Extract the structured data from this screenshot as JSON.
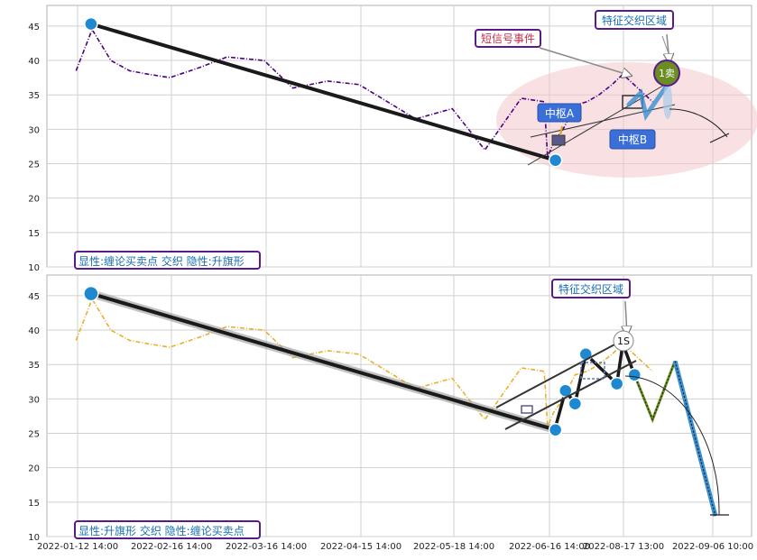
{
  "chart_data": [
    {
      "type": "line",
      "panel": "top",
      "ylim": [
        10,
        48
      ],
      "yticks": [
        10,
        15,
        20,
        25,
        30,
        35,
        40,
        45
      ],
      "grid": true,
      "series": [
        {
          "role": "price",
          "color": "#4b0082",
          "style": "dash-dot",
          "x": [
            "2022-01-12",
            "2022-01-18",
            "2022-01-25",
            "2022-02-01",
            "2022-02-08",
            "2022-02-16",
            "2022-02-25",
            "2022-03-05",
            "2022-03-16",
            "2022-03-25",
            "2022-04-05",
            "2022-04-15",
            "2022-04-25",
            "2022-05-05",
            "2022-05-18",
            "2022-05-28",
            "2022-06-08",
            "2022-06-15",
            "2022-06-16",
            "2022-06-20",
            "2022-06-28",
            "2022-07-08",
            "2022-07-18",
            "2022-07-28",
            "2022-08-08",
            "2022-08-17",
            "2022-08-24"
          ],
          "y": [
            38.5,
            44.5,
            40.0,
            38.5,
            38.0,
            37.5,
            39.0,
            40.5,
            40.0,
            36.0,
            37.0,
            36.5,
            34.0,
            31.5,
            33.0,
            27.0,
            34.5,
            34.0,
            26.0,
            28.0,
            30.0,
            33.5,
            34.0,
            35.0,
            36.5,
            38.0,
            34.0
          ]
        },
        {
          "role": "bi-stroke",
          "color": "#1a1a1a",
          "x": [
            "2022-01-17 14:00",
            "2022-06-21 14:00"
          ],
          "y": [
            45.3,
            25.5
          ]
        }
      ],
      "markers": [
        {
          "x": "2022-01-17 14:00",
          "y": 45.3
        },
        {
          "x": "2022-06-21 14:00",
          "y": 25.5
        }
      ],
      "annotations": [
        {
          "label": "短信号事件"
        },
        {
          "label": "特征交织区域"
        },
        {
          "label": "中枢A"
        },
        {
          "label": "中枢B"
        },
        {
          "label": "1卖"
        }
      ],
      "legend_text": "显性:缠论买卖点 交织 隐性:升旗形"
    },
    {
      "type": "line",
      "panel": "bottom",
      "ylim": [
        10,
        48
      ],
      "yticks": [
        10,
        15,
        20,
        25,
        30,
        35,
        40,
        45
      ],
      "xticks": [
        "2022-01-12 14:00",
        "2022-02-16 14:00",
        "2022-03-16 14:00",
        "2022-04-15 14:00",
        "2022-05-18 14:00",
        "2022-06-16 14:00",
        "2022-08-17 13:00",
        "2022-09-06 10:00"
      ],
      "grid": true,
      "series": [
        {
          "role": "price",
          "color": "#e8b030",
          "style": "dash-dot",
          "x": [
            "2022-01-12",
            "2022-01-18",
            "2022-01-25",
            "2022-02-01",
            "2022-02-08",
            "2022-02-16",
            "2022-02-25",
            "2022-03-05",
            "2022-03-16",
            "2022-03-25",
            "2022-04-05",
            "2022-04-15",
            "2022-04-25",
            "2022-05-05",
            "2022-05-18",
            "2022-05-28",
            "2022-06-08",
            "2022-06-15",
            "2022-06-16",
            "2022-06-20",
            "2022-06-28",
            "2022-07-08",
            "2022-07-18",
            "2022-07-28",
            "2022-08-08",
            "2022-08-17",
            "2022-08-24"
          ],
          "y": [
            38.5,
            44.5,
            40.0,
            38.5,
            38.0,
            37.5,
            39.0,
            40.5,
            40.0,
            36.0,
            37.0,
            36.5,
            34.0,
            31.5,
            33.0,
            27.0,
            34.5,
            34.0,
            26.0,
            28.0,
            30.0,
            33.5,
            34.0,
            35.0,
            36.5,
            38.0,
            34.0
          ]
        },
        {
          "role": "bi-stroke",
          "color": "#1a1a1a",
          "x": [
            "2022-01-17 14:00",
            "2022-06-21 14:00"
          ],
          "y": [
            45.3,
            25.5
          ]
        },
        {
          "role": "zigzag",
          "color": "#1a1a1a",
          "x": [
            "2022-06-21",
            "2022-06-30",
            "2022-07-08",
            "2022-07-17",
            "2022-08-12",
            "2022-08-17",
            "2022-08-20"
          ],
          "y": [
            25.5,
            31.2,
            29.3,
            36.5,
            32.2,
            38.0,
            33.5
          ]
        },
        {
          "role": "projection-green",
          "color": "#6b8e23",
          "x": [
            "2022-08-20",
            "2022-08-24",
            "2022-08-29"
          ],
          "y": [
            33.5,
            27.0,
            35.5
          ]
        },
        {
          "role": "projection-blue",
          "color": "#3a8fd0",
          "x": [
            "2022-08-29",
            "2022-09-07"
          ],
          "y": [
            35.5,
            13.0
          ]
        }
      ],
      "markers": [
        {
          "x": "2022-01-17 14:00",
          "y": 45.3
        },
        {
          "x": "2022-06-21 14:00",
          "y": 25.5
        },
        {
          "x": "2022-06-30",
          "y": 31.2
        },
        {
          "x": "2022-07-08",
          "y": 29.3
        },
        {
          "x": "2022-07-17",
          "y": 36.5
        },
        {
          "x": "2022-08-12",
          "y": 32.2
        },
        {
          "x": "2022-08-20",
          "y": 33.5
        }
      ],
      "annotations": [
        {
          "label": "特征交织区域"
        },
        {
          "label": "1S"
        }
      ],
      "legend_text": "显性:升旗形 交织 隐性:缠论买卖点"
    }
  ],
  "colors": {
    "grid": "#d0d0d0",
    "axis": "#b0b0b0",
    "marker_blue": "#1e88d0",
    "annotation_border": "#5a1a8a",
    "annotation_text": "#1a6fb0",
    "signal_text": "#c0304a",
    "box_blue": "#3a6fd8",
    "ellipse_fill": "#f3c6cc",
    "sell_green": "#6b8e23"
  }
}
